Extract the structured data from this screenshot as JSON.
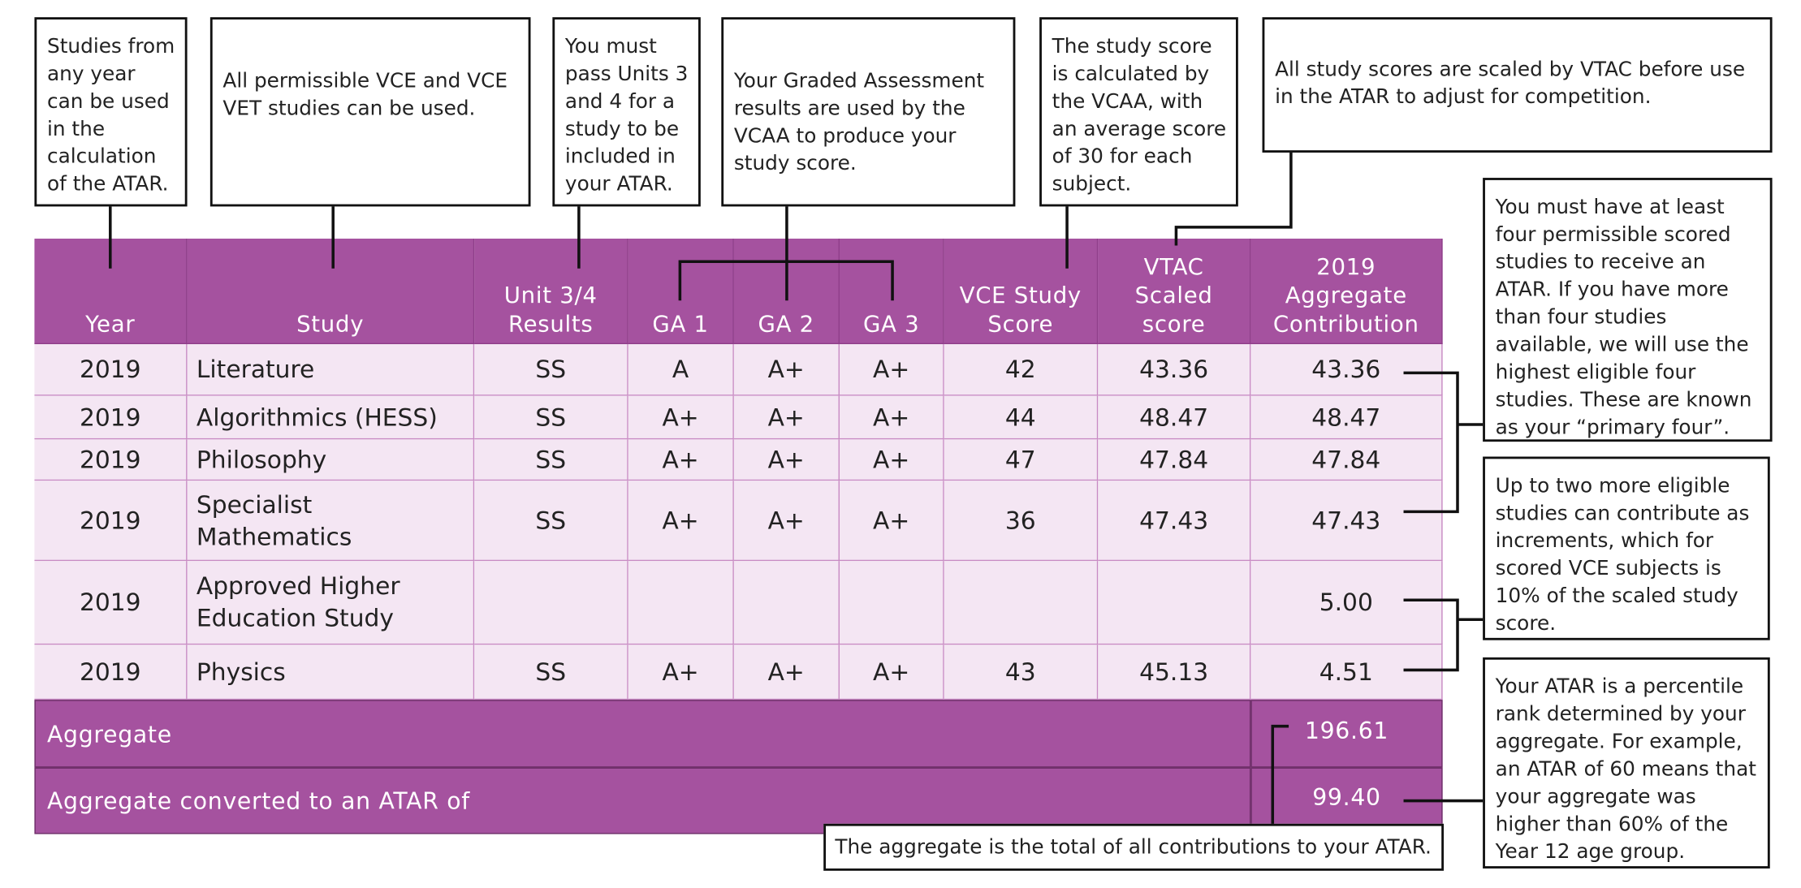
{
  "callouts": [
    {
      "text": "Studies from any year can be used in the calculation of the ATAR."
    },
    {
      "text": "All permissible VCE and VCE VET studies can be used."
    },
    {
      "text": "You must pass Units 3 and 4 for a study to be included in your ATAR."
    },
    {
      "text": "Your Graded Assessment results are used by the VCAA to produce your study score."
    },
    {
      "text": "The study score is calculated by the VCAA, with an average score of 30 for each subject."
    },
    {
      "text": "All study scores are scaled by VTAC before use in the ATAR to adjust for competition."
    },
    {
      "text": "You must have at least four permissible scored studies to receive an ATAR. If you have more than four studies available, we will use the highest eligible four studies. These are known as your “primary four”."
    },
    {
      "text": "Up to two more eligible studies can contribute as increments, which for scored VCE subjects is 10% of the scaled study score."
    },
    {
      "text": "Your ATAR is a percentile rank determined by your aggregate. For example, an ATAR of 60 means that your aggregate was higher than 60% of the Year 12 age group."
    },
    {
      "text": "The aggregate is the total of all contributions to your ATAR."
    }
  ],
  "table": {
    "headers": [
      "Year",
      "Study",
      "Unit 3/4 Results",
      "GA 1",
      "GA 2",
      "GA 3",
      "VCE Study Score",
      "VTAC Scaled score",
      "2019 Aggregate Contribution"
    ],
    "rows": [
      [
        "2019",
        "Literature",
        "SS",
        "A",
        "A+",
        "A+",
        "42",
        "43.36",
        "43.36"
      ],
      [
        "2019",
        "Algorithmics (HESS)",
        "SS",
        "A+",
        "A+",
        "A+",
        "44",
        "48.47",
        "48.47"
      ],
      [
        "2019",
        "Philosophy",
        "SS",
        "A+",
        "A+",
        "A+",
        "47",
        "47.84",
        "47.84"
      ],
      [
        "2019",
        "Specialist Mathematics",
        "SS",
        "A+",
        "A+",
        "A+",
        "36",
        "47.43",
        "47.43"
      ],
      [
        "2019",
        "Approved Higher Education Study",
        null,
        null,
        null,
        null,
        null,
        null,
        "5.00"
      ],
      [
        "2019",
        "Physics",
        "SS",
        "A+",
        "A+",
        "A+",
        "43",
        "45.13",
        "4.51"
      ]
    ],
    "aggregate": {
      "label": "Aggregate",
      "value": "196.61"
    },
    "atar": {
      "label": "Aggregate converted to an ATAR of",
      "value": "99.40"
    }
  }
}
